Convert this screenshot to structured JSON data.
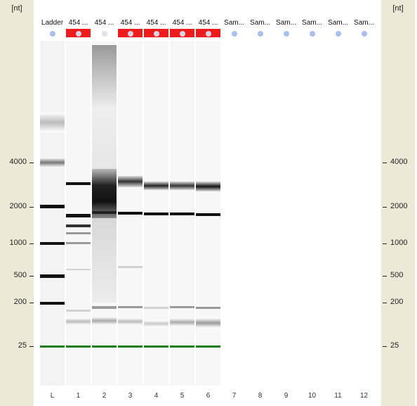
{
  "y_axis": {
    "unit": "[nt]",
    "ticks": [
      "4000",
      "2000",
      "1000",
      "500",
      "200",
      "25"
    ]
  },
  "lanes": [
    {
      "header": "Ladder",
      "footer": "L",
      "status": "plain",
      "loaded": true
    },
    {
      "header": "454 ...",
      "footer": "1",
      "status": "red",
      "loaded": true
    },
    {
      "header": "454 ...",
      "footer": "2",
      "status": "pale",
      "loaded": true
    },
    {
      "header": "454 ...",
      "footer": "3",
      "status": "red",
      "loaded": true
    },
    {
      "header": "454 ...",
      "footer": "4",
      "status": "red",
      "loaded": true
    },
    {
      "header": "454 ...",
      "footer": "5",
      "status": "red",
      "loaded": true
    },
    {
      "header": "454 ...",
      "footer": "6",
      "status": "red",
      "loaded": true
    },
    {
      "header": "Sam...",
      "footer": "7",
      "status": "plain",
      "loaded": false
    },
    {
      "header": "Sam...",
      "footer": "8",
      "status": "plain",
      "loaded": false
    },
    {
      "header": "Sam...",
      "footer": "9",
      "status": "plain",
      "loaded": false
    },
    {
      "header": "Sam...",
      "footer": "10",
      "status": "plain",
      "loaded": false
    },
    {
      "header": "Sam...",
      "footer": "11",
      "status": "plain",
      "loaded": false
    },
    {
      "header": "Sam...",
      "footer": "12",
      "status": "plain",
      "loaded": false
    }
  ],
  "colors": {
    "axis_panel": "#ede9d7",
    "status_flag": "#ee1c1c",
    "status_dot": "#a9bfee",
    "lower_marker": "#1e7d1e"
  }
}
